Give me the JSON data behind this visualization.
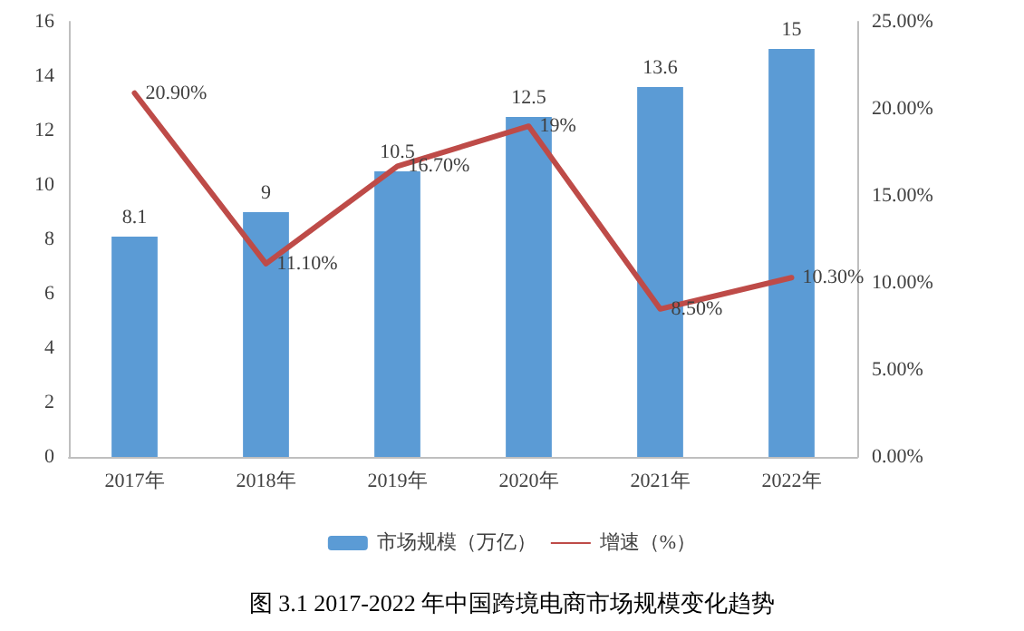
{
  "chart_data": {
    "type": "bar",
    "title": "图 3.1 2017-2022 年中国跨境电商市场规模变化趋势",
    "categories": [
      "2017年",
      "2018年",
      "2019年",
      "2020年",
      "2021年",
      "2022年"
    ],
    "series": [
      {
        "name": "市场规模（万亿）",
        "color": "#5b9bd5",
        "values": [
          8.1,
          9,
          10.5,
          12.5,
          13.6,
          15
        ],
        "value_labels": [
          "8.1",
          "9",
          "10.5",
          "12.5",
          "13.6",
          "15"
        ]
      },
      {
        "name": "增速（%）",
        "type": "line",
        "axis": "y2",
        "color": "#be4b48",
        "values": [
          20.9,
          11.1,
          16.7,
          19,
          8.5,
          10.3
        ],
        "value_labels": [
          "20.90%",
          "11.10%",
          "16.70%",
          "19%",
          "8.50%",
          "10.30%"
        ]
      }
    ],
    "ylim": [
      0,
      16
    ],
    "yticks": [
      0,
      2,
      4,
      6,
      8,
      10,
      12,
      14,
      16
    ],
    "y2lim": [
      0,
      25
    ],
    "y2ticks": [
      {
        "value": 0,
        "label": "0.00%"
      },
      {
        "value": 5,
        "label": "5.00%"
      },
      {
        "value": 10,
        "label": "10.00%"
      },
      {
        "value": 15,
        "label": "15.00%"
      },
      {
        "value": 20,
        "label": "20.00%"
      },
      {
        "value": 25,
        "label": "25.00%"
      }
    ],
    "grid": false,
    "legend": "bottom",
    "marker": "none",
    "line_style": "solid"
  }
}
